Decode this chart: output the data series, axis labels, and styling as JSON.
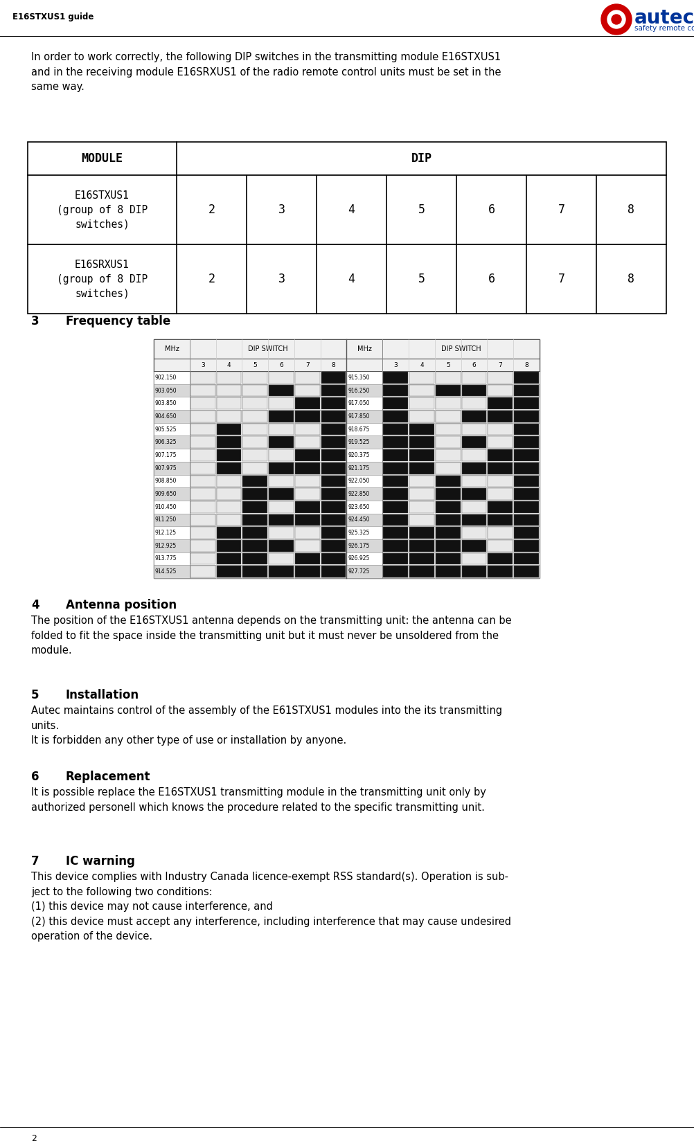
{
  "header_text": "E16STXUS1 guide",
  "intro_text": "In order to work correctly, the following DIP switches in the transmitting module E16STXUS1\nand in the receiving module E16SRXUS1 of the radio remote control units must be set in the\nsame way.",
  "table_header_module": "MODULE",
  "table_header_dip": "DIP",
  "table_row1_name": "E16STXUS1\n(group of 8 DIP\nswitches)",
  "table_row2_name": "E16SRXUS1\n(group of 8 DIP\nswitches)",
  "table_dip_cols": [
    "2",
    "3",
    "4",
    "5",
    "6",
    "7",
    "8"
  ],
  "sec3_num": "3",
  "sec3_title": "Frequency table",
  "sec4_num": "4",
  "sec4_title": "Antenna position",
  "sec4_text": "The position of the E16STXUS1 antenna depends on the transmitting unit: the antenna can be\nfolded to fit the space inside the transmitting unit but it must never be unsoldered from the\nmodule.",
  "sec5_num": "5",
  "sec5_title": "Installation",
  "sec5_text": "Autec maintains control of the assembly of the E61STXUS1 modules into the its transmitting\nunits.\nIt is forbidden any other type of use or installation by anyone.",
  "sec6_num": "6",
  "sec6_title": "Replacement",
  "sec6_text": "It is possible replace the E16STXUS1 transmitting module in the transmitting unit only by\nauthorized personell which knows the procedure related to the specific transmitting unit.",
  "sec7_num": "7",
  "sec7_title": "IC warning",
  "sec7_text": "This device complies with Industry Canada licence-exempt RSS standard(s). Operation is sub-\nject to the following two conditions:\n(1) this device may not cause interference, and\n(2) this device must accept any interference, including interference that may cause undesired\noperation of the device.",
  "footer_text": "2",
  "bg_color": "#ffffff",
  "logo_blue": "#003399",
  "logo_red": "#cc0000",
  "freq_left": [
    {
      "mhz": "902.150",
      "sw": [
        "off",
        "off",
        "off",
        "off",
        "off",
        "on"
      ]
    },
    {
      "mhz": "903.050",
      "sw": [
        "off",
        "off",
        "off",
        "on",
        "off",
        "on"
      ]
    },
    {
      "mhz": "903.850",
      "sw": [
        "off",
        "off",
        "off",
        "off",
        "on",
        "on"
      ]
    },
    {
      "mhz": "904.650",
      "sw": [
        "off",
        "off",
        "off",
        "on",
        "on",
        "on"
      ]
    },
    {
      "mhz": "905.525",
      "sw": [
        "off",
        "on",
        "off",
        "off",
        "off",
        "on"
      ]
    },
    {
      "mhz": "906.325",
      "sw": [
        "off",
        "on",
        "off",
        "on",
        "off",
        "on"
      ]
    },
    {
      "mhz": "907.175",
      "sw": [
        "off",
        "on",
        "off",
        "off",
        "on",
        "on"
      ]
    },
    {
      "mhz": "907.975",
      "sw": [
        "off",
        "on",
        "off",
        "on",
        "on",
        "on"
      ]
    },
    {
      "mhz": "908.850",
      "sw": [
        "off",
        "off",
        "on",
        "off",
        "off",
        "on"
      ]
    },
    {
      "mhz": "909.650",
      "sw": [
        "off",
        "off",
        "on",
        "on",
        "off",
        "on"
      ]
    },
    {
      "mhz": "910.450",
      "sw": [
        "off",
        "off",
        "on",
        "off",
        "on",
        "on"
      ]
    },
    {
      "mhz": "911.250",
      "sw": [
        "off",
        "off",
        "on",
        "on",
        "on",
        "on"
      ]
    },
    {
      "mhz": "912.125",
      "sw": [
        "off",
        "on",
        "on",
        "off",
        "off",
        "on"
      ]
    },
    {
      "mhz": "912.925",
      "sw": [
        "off",
        "on",
        "on",
        "on",
        "off",
        "on"
      ]
    },
    {
      "mhz": "913.775",
      "sw": [
        "off",
        "on",
        "on",
        "off",
        "on",
        "on"
      ]
    },
    {
      "mhz": "914.525",
      "sw": [
        "off",
        "on",
        "on",
        "on",
        "on",
        "on"
      ]
    }
  ],
  "freq_right": [
    {
      "mhz": "915.350",
      "sw": [
        "on",
        "off",
        "off",
        "off",
        "off",
        "on"
      ]
    },
    {
      "mhz": "916.250",
      "sw": [
        "on",
        "off",
        "on",
        "on",
        "off",
        "on"
      ]
    },
    {
      "mhz": "917.050",
      "sw": [
        "on",
        "off",
        "off",
        "off",
        "on",
        "on"
      ]
    },
    {
      "mhz": "917.850",
      "sw": [
        "on",
        "off",
        "off",
        "on",
        "on",
        "on"
      ]
    },
    {
      "mhz": "918.675",
      "sw": [
        "on",
        "on",
        "off",
        "off",
        "off",
        "on"
      ]
    },
    {
      "mhz": "919.525",
      "sw": [
        "on",
        "on",
        "off",
        "on",
        "off",
        "on"
      ]
    },
    {
      "mhz": "920.375",
      "sw": [
        "on",
        "on",
        "off",
        "off",
        "on",
        "on"
      ]
    },
    {
      "mhz": "921.175",
      "sw": [
        "on",
        "on",
        "off",
        "on",
        "on",
        "on"
      ]
    },
    {
      "mhz": "922.050",
      "sw": [
        "on",
        "off",
        "on",
        "off",
        "off",
        "on"
      ]
    },
    {
      "mhz": "922.850",
      "sw": [
        "on",
        "off",
        "on",
        "on",
        "off",
        "on"
      ]
    },
    {
      "mhz": "923.650",
      "sw": [
        "on",
        "off",
        "on",
        "off",
        "on",
        "on"
      ]
    },
    {
      "mhz": "924.450",
      "sw": [
        "on",
        "off",
        "on",
        "on",
        "on",
        "on"
      ]
    },
    {
      "mhz": "925.325",
      "sw": [
        "on",
        "on",
        "on",
        "off",
        "off",
        "on"
      ]
    },
    {
      "mhz": "926.175",
      "sw": [
        "on",
        "on",
        "on",
        "on",
        "off",
        "on"
      ]
    },
    {
      "mhz": "926.925",
      "sw": [
        "on",
        "on",
        "on",
        "off",
        "on",
        "on"
      ]
    },
    {
      "mhz": "927.725",
      "sw": [
        "on",
        "on",
        "on",
        "on",
        "on",
        "on"
      ]
    }
  ]
}
